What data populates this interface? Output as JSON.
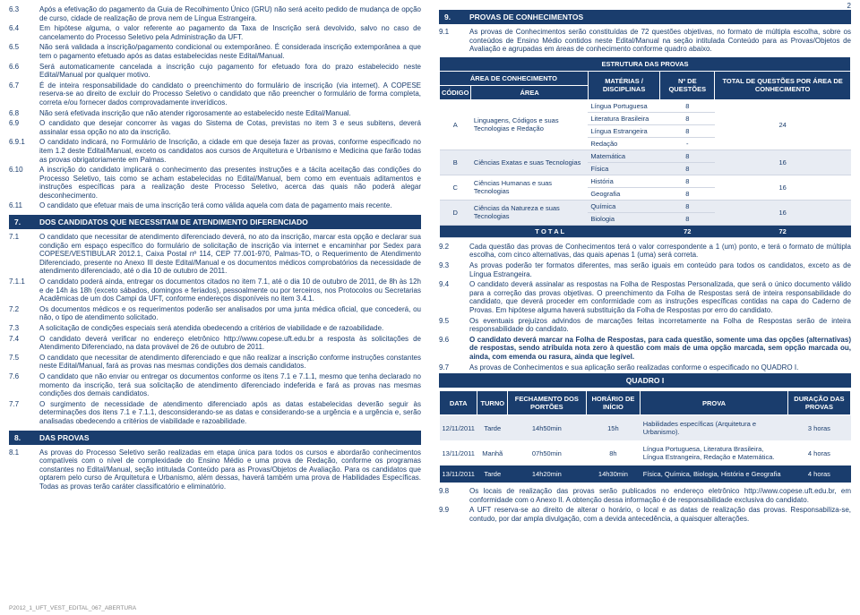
{
  "page_number": "2",
  "footer": "P2012_1_UFT_VEST_EDITAL_067_ABERTURA",
  "left": {
    "items_a": [
      {
        "n": "6.3",
        "t": "Após a efetivação do pagamento da Guia de Recolhimento Único (GRU) não será aceito pedido de mudança de opção de curso, cidade de realização de prova nem de Língua Estrangeira."
      },
      {
        "n": "6.4",
        "t": "Em hipótese alguma, o valor referente ao pagamento da Taxa de Inscrição será devolvido, salvo no caso de cancelamento do Processo Seletivo pela Administração da UFT."
      },
      {
        "n": "6.5",
        "t": "Não será validada a inscrição/pagamento condicional ou extemporâneo. É considerada inscrição extemporânea a que tem o pagamento efetuado após as datas estabelecidas neste Edital/Manual."
      },
      {
        "n": "6.6",
        "t": "Será automaticamente cancelada a inscrição cujo pagamento for efetuado fora do prazo estabelecido neste Edital/Manual por qualquer motivo."
      },
      {
        "n": "6.7",
        "t": "É de inteira responsabilidade do candidato o preenchimento do formulário de inscrição (via internet). A COPESE reserva-se ao direito de excluir do Processo Seletivo o candidato que não preencher o formulário de forma completa, correta e/ou fornecer dados comprovadamente inverídicos."
      },
      {
        "n": "6.8",
        "t": "Não será efetivada inscrição que não atender rigorosamente ao estabelecido neste Edital/Manual."
      },
      {
        "n": "6.9",
        "t": "O candidato que desejar concorrer às vagas do Sistema de Cotas, previstas no item 3 e seus subitens, deverá assinalar essa opção no ato da inscrição."
      },
      {
        "n": "6.9.1",
        "t": "O candidato indicará, no Formulário de Inscrição, a cidade em que deseja fazer as provas, conforme especificado no item 1.2 deste Edital/Manual, exceto os candidatos aos cursos de Arquitetura e Urbanismo e Medicina que farão todas as provas obrigatoriamente em Palmas."
      },
      {
        "n": "6.10",
        "t": "A inscrição do candidato implicará o conhecimento das presentes instruções e a tácita aceitação das condições do Processo Seletivo, tais como se acham estabelecidas no Edital/Manual, bem como em eventuais aditamentos e instruções específicas para a realização deste Processo Seletivo, acerca das quais não poderá alegar desconhecimento."
      },
      {
        "n": "6.11",
        "t": "O candidato que efetuar mais de uma inscrição terá como válida aquela com data de pagamento mais recente."
      }
    ],
    "section7": {
      "num": "7.",
      "title": "DOS CANDIDATOS QUE NECESSITAM DE ATENDIMENTO DIFERENCIADO"
    },
    "items_b": [
      {
        "n": "7.1",
        "t": "O candidato que necessitar de atendimento diferenciado deverá, no ato da inscrição, marcar esta opção e declarar sua condição em espaço específico do formulário de solicitação de inscrição via internet e encaminhar por Sedex para COPESE/VESTIBULAR 2012.1, Caixa Postal nº 114, CEP 77.001-970, Palmas-TO, o Requerimento de Atendimento Diferenciado, presente no Anexo III deste Edital/Manual e os documentos médicos comprobatórios da necessidade de atendimento diferenciado, até o dia 10 de outubro de 2011."
      },
      {
        "n": "7.1.1",
        "t": "O candidato poderá ainda, entregar os documentos citados no item 7.1, até o dia 10 de outubro de 2011, de 8h às 12h e de 14h às 18h (exceto sábados, domingos e feriados), pessoalmente ou por terceiros, nos Protocolos ou Secretarias Acadêmicas de um dos Campi da UFT, conforme endereços disponíveis no item 3.4.1."
      },
      {
        "n": "7.2",
        "t": "Os documentos médicos e os requerimentos poderão ser analisados por uma junta médica oficial, que concederá, ou não, o tipo de atendimento solicitado."
      },
      {
        "n": "7.3",
        "t": "A solicitação de condições especiais será atendida obedecendo a critérios de viabilidade e de razoabilidade."
      },
      {
        "n": "7.4",
        "t": "O candidato deverá verificar no endereço eletrônico http://www.copese.uft.edu.br a resposta às solicitações de Atendimento Diferenciado, na data provável de 26 de outubro de 2011."
      },
      {
        "n": "7.5",
        "t": "O candidato que necessitar de atendimento diferenciado e que não realizar a inscrição conforme instruções constantes neste Edital/Manual, fará as provas nas mesmas condições dos demais candidatos."
      },
      {
        "n": "7.6",
        "t": "O candidato que não enviar ou entregar os documentos conforme os itens 7.1 e 7.1.1, mesmo que tenha declarado no momento da inscrição, terá sua solicitação de atendimento diferenciado indeferida e fará as provas nas mesmas condições dos demais candidatos."
      },
      {
        "n": "7.7",
        "t": "O surgimento de necessidade de atendimento diferenciado após as datas estabelecidas deverão seguir às determinações dos itens 7.1 e 7.1.1, desconsiderando-se as datas e considerando-se a urgência e a urgência e, serão analisadas obedecendo a critérios de viabilidade e razoabilidade."
      }
    ],
    "section8": {
      "num": "8.",
      "title": "DAS PROVAS"
    },
    "items_c": [
      {
        "n": "8.1",
        "t": "As provas do Processo Seletivo serão realizadas em etapa única para todos os cursos e abordarão conhecimentos compatíveis com o nível de complexidade do Ensino Médio e uma prova de Redação, conforme os programas constantes no Edital/Manual, seção intitulada Conteúdo para as Provas/Objetos de Avaliação. Para os candidatos que optarem pelo curso de Arquitetura e Urbanismo, além dessas, haverá também uma prova de Habilidades Específicas. Todas as provas terão caráter classificatório e eliminatório."
      }
    ]
  },
  "right": {
    "section9": {
      "num": "9.",
      "title": "PROVAS DE CONHECIMENTOS"
    },
    "item91": {
      "n": "9.1",
      "t": "As provas de Conhecimentos serão constituídas de 72 questões objetivas, no formato de múltipla escolha, sobre os conteúdos de Ensino Médio contidos neste Edital/Manual na seção intitulada Conteúdo para as Provas/Objetos de Avaliação e agrupadas em áreas de conhecimento conforme quadro abaixo."
    },
    "struct": {
      "title": "ESTRUTURA DAS PROVAS",
      "headers": {
        "h1": "ÁREA DE CONHECIMENTO",
        "h1a": "CÓDIGO",
        "h1b": "ÁREA",
        "h2": "MATÉRIAS / DISCIPLINAS",
        "h3": "Nº DE QUESTÕES",
        "h4": "TOTAL DE QUESTÕES POR ÁREA DE CONHECIMENTO"
      },
      "rows": [
        {
          "code": "A",
          "area": "Linguagens, Códigos e suas Tecnologias e Redação",
          "disc": [
            "Língua Portuguesa",
            "Literatura Brasileira",
            "Língua Estrangeira",
            "Redação"
          ],
          "nq": [
            "8",
            "8",
            "8",
            "-"
          ],
          "total": "24"
        },
        {
          "code": "B",
          "area": "Ciências Exatas e suas Tecnologias",
          "disc": [
            "Matemática",
            "Física"
          ],
          "nq": [
            "8",
            "8"
          ],
          "total": "16"
        },
        {
          "code": "C",
          "area": "Ciências Humanas e suas Tecnologias",
          "disc": [
            "História",
            "Geografia"
          ],
          "nq": [
            "8",
            "8"
          ],
          "total": "16"
        },
        {
          "code": "D",
          "area": "Ciências da Natureza e suas Tecnologias",
          "disc": [
            "Química",
            "Biologia"
          ],
          "nq": [
            "8",
            "8"
          ],
          "total": "16"
        }
      ],
      "total_label": "T O T A L",
      "total_a": "72",
      "total_b": "72"
    },
    "items_d": [
      {
        "n": "9.2",
        "t": "Cada questão das provas de Conhecimentos terá o valor correspondente a 1 (um) ponto, e terá o formato de múltipla escolha, com cinco alternativas, das quais apenas 1 (uma) será correta."
      },
      {
        "n": "9.3",
        "t": "As provas poderão ter formatos diferentes, mas serão iguais em conteúdo para todos os candidatos, exceto as de Língua Estrangeira."
      },
      {
        "n": "9.4",
        "t": "O candidato deverá assinalar as respostas na Folha de Respostas Personalizada, que será o único documento válido para a correção das provas objetivas. O preenchimento da Folha de Respostas será de inteira responsabilidade do candidato, que deverá proceder em conformidade com as instruções específicas contidas na capa do Caderno de Provas. Em hipótese alguma haverá substituição da Folha de Respostas por erro do candidato."
      },
      {
        "n": "9.5",
        "t": "Os eventuais prejuízos advindos de marcações feitas incorretamente na Folha de Respostas serão de inteira responsabilidade do candidato."
      },
      {
        "n": "9.6",
        "t": "O candidato deverá marcar na Folha de Respostas, para cada questão, somente uma das opções (alternativas) de respostas, sendo atribuída nota zero à questão com mais de uma opção marcada, sem opção marcada ou, ainda, com emenda ou rasura, ainda que legível.",
        "bold": true
      },
      {
        "n": "9.7",
        "t": "As provas de Conhecimentos e sua aplicação serão realizadas conforme o especificado no QUADRO I."
      }
    ],
    "quadro": {
      "title": "QUADRO I",
      "headers": [
        "DATA",
        "TURNO",
        "FECHAMENTO DOS PORTÕES",
        "HORÁRIO DE INÍCIO",
        "PROVA",
        "DURAÇÃO DAS PROVAS"
      ],
      "rows": [
        [
          "12/11/2011",
          "Tarde",
          "14h50min",
          "15h",
          "Habilidades específicas (Arquitetura e Urbanismo).",
          "3 horas"
        ],
        [
          "13/11/2011",
          "Manhã",
          "07h50min",
          "8h",
          "Língua Portuguesa, Literatura Brasileira, Língua Estrangeira, Redação e Matemática.",
          "4 horas"
        ],
        [
          "13/11/2011",
          "Tarde",
          "14h20min",
          "14h30min",
          "Física, Química, Biologia, História e Geografia",
          "4 horas"
        ]
      ]
    },
    "items_e": [
      {
        "n": "9.8",
        "t": "Os locais de realização das provas serão publicados no endereço eletrônico http://www.copese.uft.edu.br, em conformidade com o Anexo II. A obtenção dessa informação é de responsabilidade exclusiva do candidato."
      },
      {
        "n": "9.9",
        "t": "A UFT reserva-se ao direito de alterar o horário, o local e as datas de realização das provas. Responsabiliza-se, contudo, por dar ampla divulgação, com a devida antecedência, a quaisquer alterações."
      }
    ]
  }
}
